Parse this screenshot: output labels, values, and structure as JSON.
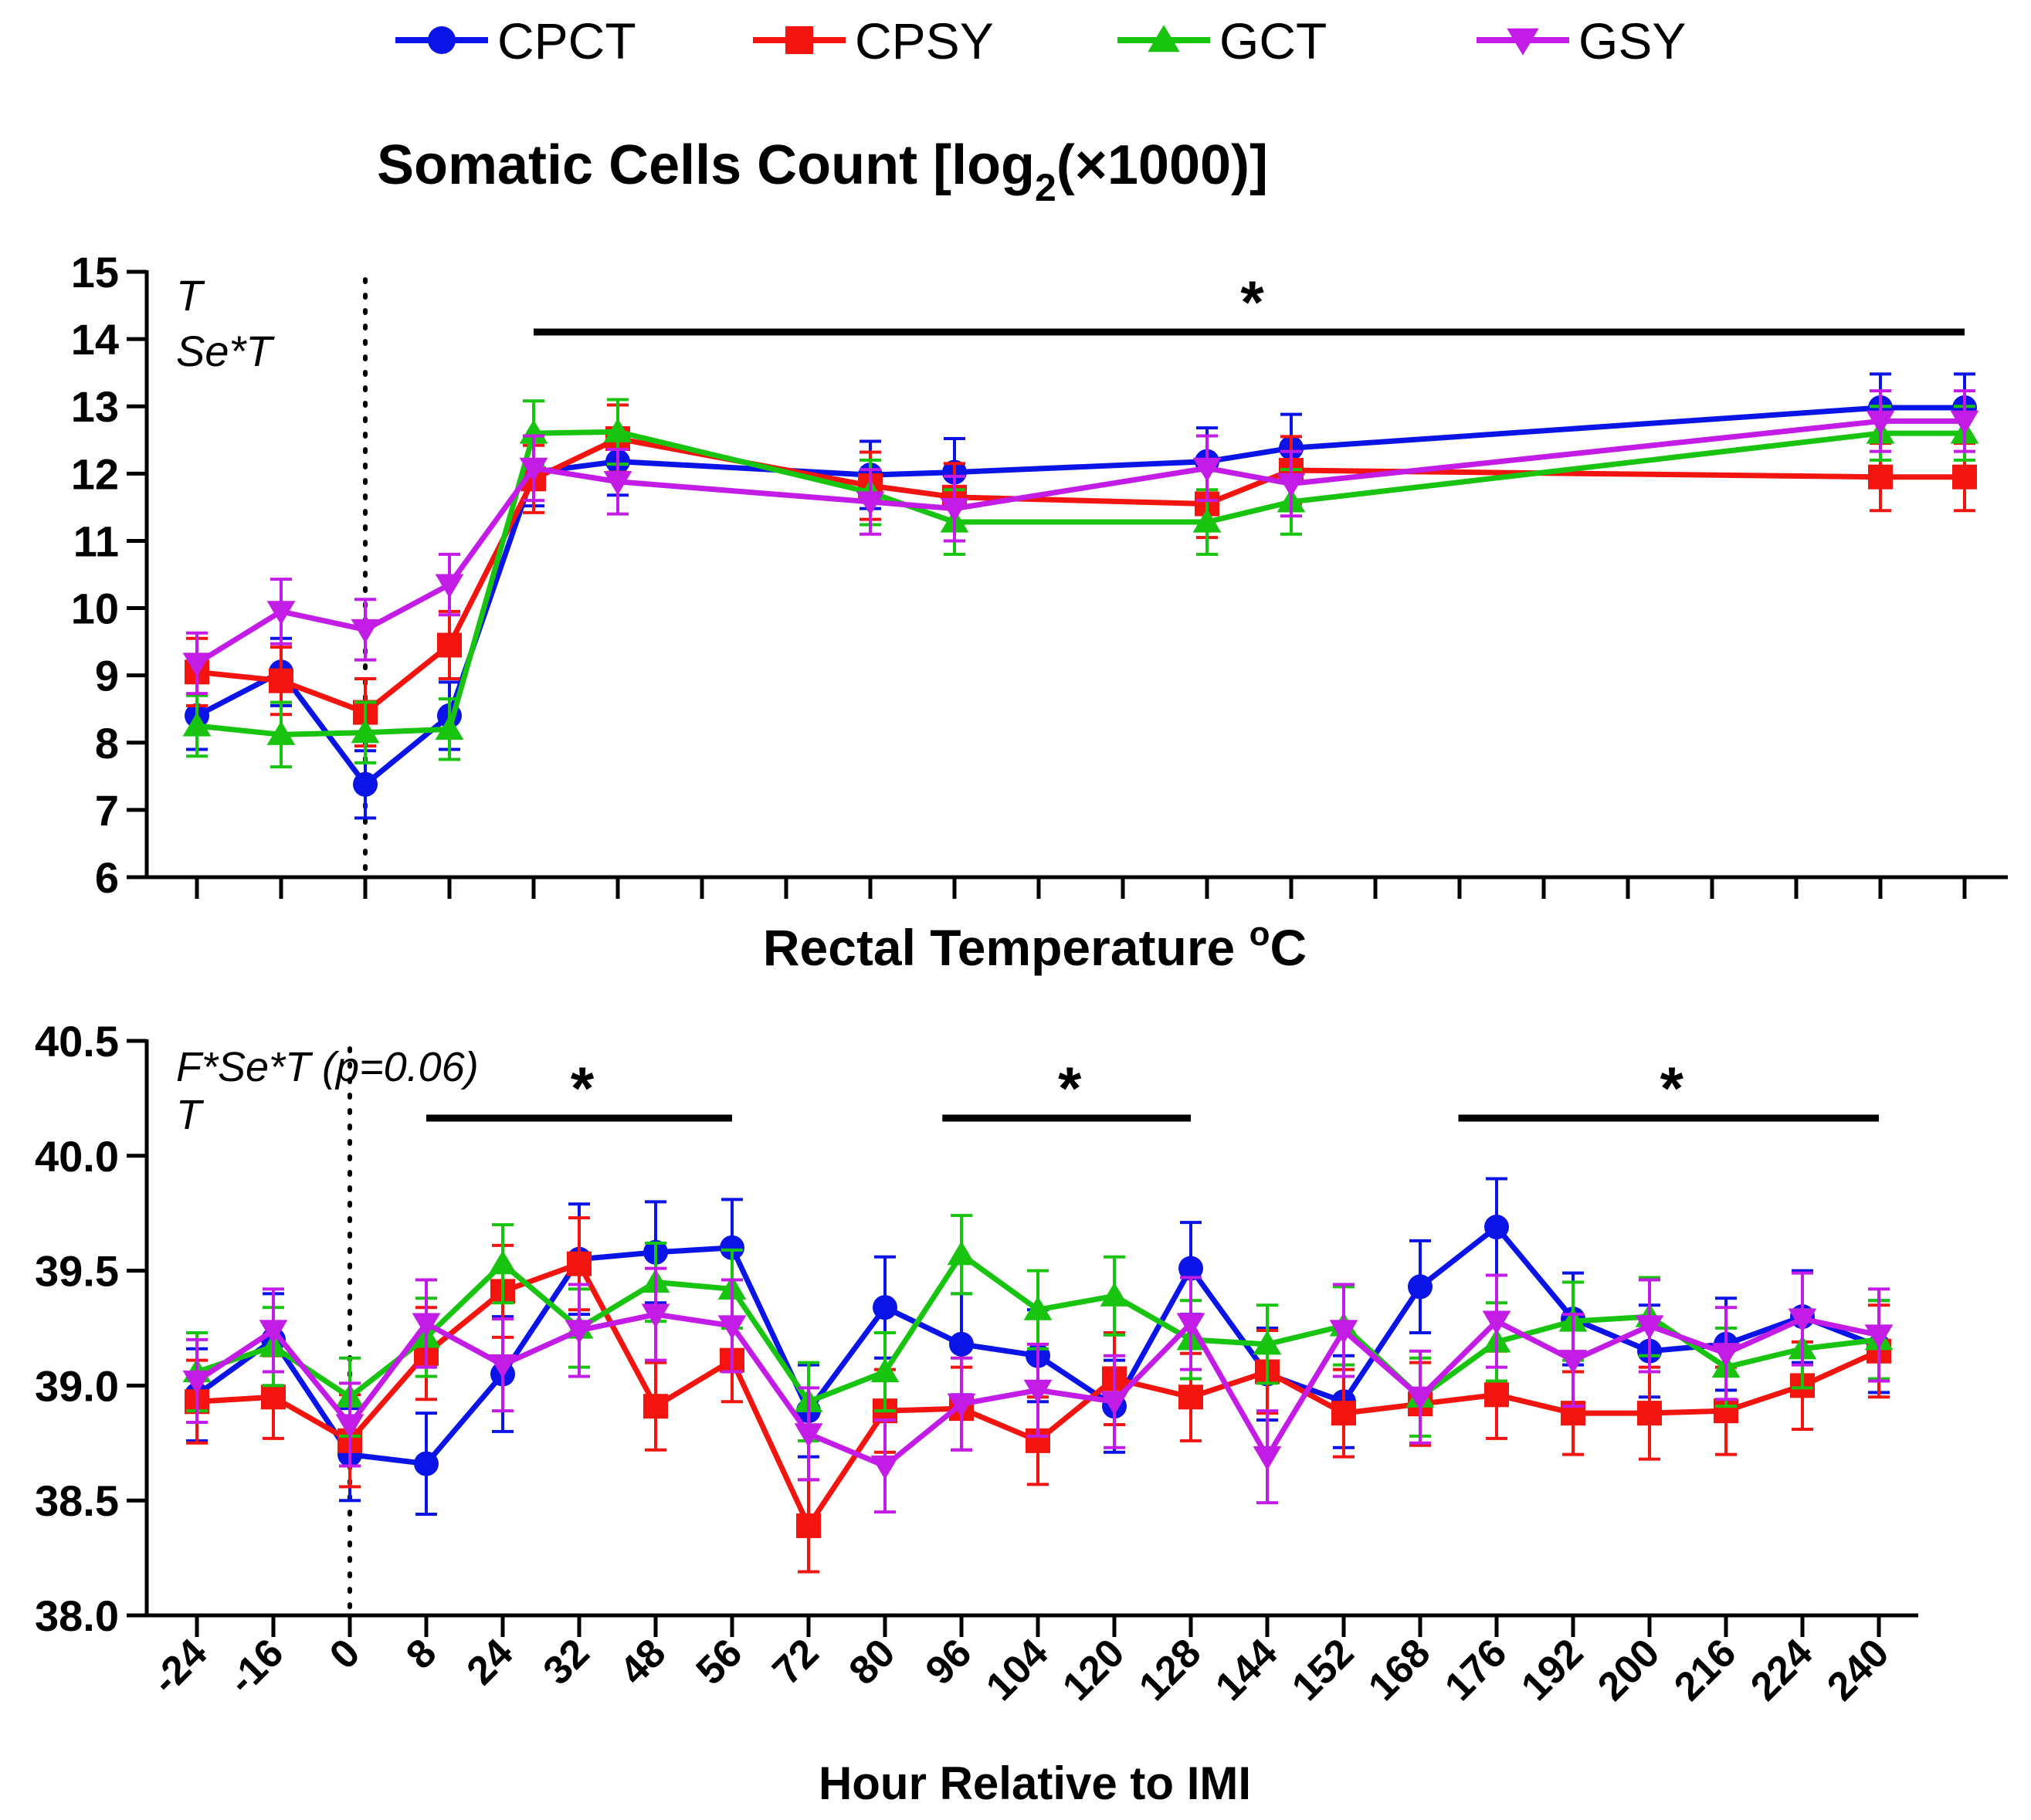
{
  "colors": {
    "CPCT": "#0a14e6",
    "CPSY": "#f2140f",
    "GCT": "#18c40f",
    "GSY": "#c21ce6"
  },
  "legend": {
    "entries": [
      {
        "key": "CPCT",
        "label": "CPCT",
        "marker": "circle-icon"
      },
      {
        "key": "CPSY",
        "label": "CPSY",
        "marker": "square-icon"
      },
      {
        "key": "GCT",
        "label": "GCT",
        "marker": "triangle-up-icon"
      },
      {
        "key": "GSY",
        "label": "GSY",
        "marker": "triangle-down-icon"
      }
    ]
  },
  "x_categories": [
    "-24",
    "-16",
    "0",
    "8",
    "24",
    "32",
    "48",
    "56",
    "72",
    "80",
    "96",
    "104",
    "120",
    "128",
    "144",
    "152",
    "168",
    "176",
    "192",
    "200",
    "216",
    "224",
    "240"
  ],
  "x_axis_title": "Hour Relative to IMI",
  "chart_data": [
    {
      "type": "line",
      "title_main": "Somatic Cells Count [log",
      "title_sub": "2",
      "title_tail": "(×1000)]",
      "ylim": [
        6,
        15
      ],
      "yticks": [
        "6",
        "7",
        "8",
        "9",
        "10",
        "11",
        "12",
        "13",
        "14",
        "15"
      ],
      "ytick_values": [
        6,
        7,
        8,
        9,
        10,
        11,
        12,
        13,
        14,
        15
      ],
      "x_ticks": 22,
      "annotations": [
        "T",
        "Se*T"
      ],
      "significance_label": "*",
      "significance_bars": [
        {
          "from_index": 4,
          "to_index": 21
        }
      ],
      "dotted_reference_index": 2,
      "series": [
        {
          "name": "CPCT",
          "x_index": [
            0,
            1,
            2,
            3,
            4,
            5,
            8,
            9,
            12,
            13,
            20,
            21
          ],
          "values": [
            8.4,
            9.05,
            7.38,
            8.4,
            12.02,
            12.18,
            11.98,
            12.02,
            12.18,
            12.38,
            12.98,
            12.98
          ],
          "errors": [
            0.5,
            0.5,
            0.5,
            0.5,
            0.5,
            0.5,
            0.5,
            0.5,
            0.5,
            0.5,
            0.5,
            0.5
          ]
        },
        {
          "name": "CPSY",
          "x_index": [
            0,
            1,
            2,
            3,
            4,
            5,
            8,
            9,
            12,
            13,
            20,
            21
          ],
          "values": [
            9.05,
            8.92,
            8.45,
            9.45,
            11.92,
            12.52,
            11.82,
            11.65,
            11.55,
            12.05,
            11.95,
            11.95
          ],
          "errors": [
            0.5,
            0.5,
            0.5,
            0.5,
            0.5,
            0.5,
            0.5,
            0.5,
            0.5,
            0.5,
            0.5,
            0.5
          ]
        },
        {
          "name": "GCT",
          "x_index": [
            0,
            1,
            2,
            3,
            4,
            5,
            8,
            9,
            12,
            13,
            20,
            21
          ],
          "values": [
            8.25,
            8.12,
            8.15,
            8.2,
            12.6,
            12.62,
            11.72,
            11.28,
            11.28,
            11.58,
            12.6,
            12.6
          ],
          "errors": [
            0.45,
            0.48,
            0.45,
            0.45,
            0.48,
            0.48,
            0.48,
            0.48,
            0.48,
            0.48,
            0.4,
            0.4
          ]
        },
        {
          "name": "GSY",
          "x_index": [
            0,
            1,
            2,
            3,
            4,
            5,
            8,
            9,
            12,
            13,
            20,
            21
          ],
          "values": [
            9.18,
            9.95,
            9.68,
            10.35,
            12.08,
            11.88,
            11.58,
            11.48,
            12.08,
            11.85,
            12.78,
            12.78
          ],
          "errors": [
            0.45,
            0.48,
            0.45,
            0.45,
            0.48,
            0.48,
            0.48,
            0.48,
            0.48,
            0.48,
            0.45,
            0.45
          ]
        }
      ]
    },
    {
      "type": "line",
      "title_main": "Rectal Temperature ",
      "title_sup": "o",
      "title_tail": "C",
      "ylim": [
        38.0,
        40.5
      ],
      "yticks": [
        "38.0",
        "38.5",
        "39.0",
        "39.5",
        "40.0",
        "40.5"
      ],
      "ytick_values": [
        38.0,
        38.5,
        39.0,
        39.5,
        40.0,
        40.5
      ],
      "annotations": [
        "F*Se*T (p=0.06)",
        "T"
      ],
      "significance_label": "*",
      "significance_bars": [
        {
          "from_value": 3,
          "to_value": 7
        },
        {
          "from_value": 9.75,
          "to_value": 13
        },
        {
          "from_value": 16.5,
          "to_value": 22
        }
      ],
      "dotted_reference_index": 2,
      "series": [
        {
          "name": "CPCT",
          "values": [
            38.96,
            39.2,
            38.7,
            38.66,
            39.05,
            39.55,
            39.58,
            39.6,
            38.89,
            39.34,
            39.18,
            39.13,
            38.91,
            39.51,
            39.05,
            38.93,
            39.43,
            39.69,
            39.29,
            39.15,
            39.18,
            39.3,
            39.17
          ],
          "errors": [
            0.2,
            0.2,
            0.2,
            0.22,
            0.25,
            0.24,
            0.22,
            0.21,
            0.2,
            0.22,
            0.22,
            0.2,
            0.2,
            0.2,
            0.2,
            0.2,
            0.2,
            0.21,
            0.2,
            0.2,
            0.2,
            0.2,
            0.2
          ]
        },
        {
          "name": "CPSY",
          "values": [
            38.93,
            38.95,
            38.76,
            39.14,
            39.41,
            39.53,
            38.91,
            39.11,
            38.39,
            38.89,
            38.9,
            38.76,
            39.03,
            38.95,
            39.06,
            38.88,
            38.92,
            38.96,
            38.88,
            38.88,
            38.89,
            39.0,
            39.15
          ],
          "errors": [
            0.18,
            0.18,
            0.2,
            0.2,
            0.2,
            0.2,
            0.19,
            0.18,
            0.2,
            0.18,
            0.18,
            0.19,
            0.2,
            0.19,
            0.18,
            0.19,
            0.18,
            0.19,
            0.18,
            0.2,
            0.19,
            0.19,
            0.2
          ]
        },
        {
          "name": "GCT",
          "values": [
            39.06,
            39.17,
            38.95,
            39.21,
            39.53,
            39.25,
            39.45,
            39.42,
            38.93,
            39.06,
            39.57,
            39.33,
            39.39,
            39.2,
            39.18,
            39.26,
            38.95,
            39.19,
            39.28,
            39.3,
            39.08,
            39.16,
            39.2
          ],
          "errors": [
            0.17,
            0.17,
            0.17,
            0.17,
            0.17,
            0.17,
            0.17,
            0.17,
            0.17,
            0.17,
            0.17,
            0.17,
            0.17,
            0.17,
            0.17,
            0.17,
            0.17,
            0.17,
            0.17,
            0.17,
            0.17,
            0.17,
            0.17
          ]
        },
        {
          "name": "GSY",
          "values": [
            39.02,
            39.24,
            38.83,
            39.27,
            39.09,
            39.24,
            39.31,
            39.26,
            38.79,
            38.65,
            38.92,
            38.98,
            38.93,
            39.27,
            38.69,
            39.24,
            38.95,
            39.28,
            39.11,
            39.26,
            39.14,
            39.29,
            39.22
          ],
          "errors": [
            0.18,
            0.18,
            0.18,
            0.19,
            0.2,
            0.2,
            0.2,
            0.2,
            0.2,
            0.2,
            0.2,
            0.2,
            0.2,
            0.2,
            0.2,
            0.2,
            0.2,
            0.2,
            0.2,
            0.2,
            0.2,
            0.2,
            0.2
          ]
        }
      ]
    }
  ]
}
